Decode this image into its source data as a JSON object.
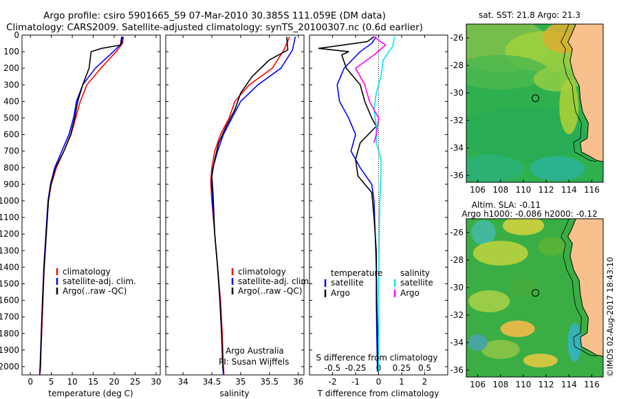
{
  "header": {
    "line1": "Argo profile: csiro 5901665_59 07-Mar-2010 30.385S 111.059E (DM data)",
    "line2": "Climatology: CARS2009. Satellite-adjusted climatology: synTS_20100307.nc (0.6d earlier)"
  },
  "colors": {
    "climatology": "#ff0000",
    "satellite": "#0000ff",
    "argo": "#000000",
    "sat_salinity": "#00e5ee",
    "argo_salinity": "#ff00ff",
    "land": "#f7c08d",
    "ocean_warm": "#8fcf47",
    "ocean_cool": "#2fa84f"
  },
  "chart_data": [
    {
      "type": "line",
      "name": "temperature-panel",
      "xlabel": "temperature (deg C)",
      "ylabel": "",
      "xlim": [
        -2,
        31
      ],
      "ylim": [
        2050,
        0
      ],
      "xticks": [
        "0",
        "5",
        "10",
        "15",
        "20",
        "25",
        "30"
      ],
      "yticks": [
        "0",
        "100",
        "200",
        "300",
        "400",
        "500",
        "600",
        "700",
        "800",
        "900",
        "1000",
        "1100",
        "1200",
        "1300",
        "1400",
        "1500",
        "1600",
        "1700",
        "1800",
        "1900",
        "2000"
      ],
      "legend": [
        "climatology",
        "satellite-adj. clim.",
        "Argo(..raw -QC)"
      ],
      "series": [
        {
          "name": "climatology",
          "color": "#ff0000",
          "points": [
            [
              22.2,
              10
            ],
            [
              22.0,
              50
            ],
            [
              20.5,
              100
            ],
            [
              16.8,
              200
            ],
            [
              13.5,
              300
            ],
            [
              11.9,
              400
            ],
            [
              10.8,
              500
            ],
            [
              9.7,
              600
            ],
            [
              8.0,
              700
            ],
            [
              6.2,
              800
            ],
            [
              5.0,
              900
            ],
            [
              4.3,
              1000
            ],
            [
              3.8,
              1200
            ],
            [
              3.3,
              1400
            ],
            [
              3.0,
              1600
            ],
            [
              2.7,
              1800
            ],
            [
              2.4,
              2000
            ],
            [
              2.3,
              2050
            ]
          ]
        },
        {
          "name": "satellite-adj. clim.",
          "color": "#0000ff",
          "points": [
            [
              22.0,
              10
            ],
            [
              21.8,
              50
            ],
            [
              19.8,
              100
            ],
            [
              15.5,
              200
            ],
            [
              12.5,
              300
            ],
            [
              11.0,
              400
            ],
            [
              10.3,
              500
            ],
            [
              9.2,
              600
            ],
            [
              7.5,
              700
            ],
            [
              5.8,
              800
            ],
            [
              4.8,
              900
            ],
            [
              4.2,
              1000
            ],
            [
              3.7,
              1200
            ],
            [
              3.2,
              1400
            ],
            [
              2.9,
              1600
            ],
            [
              2.6,
              1800
            ],
            [
              2.3,
              2000
            ],
            [
              2.2,
              2050
            ]
          ]
        },
        {
          "name": "Argo(..raw -QC)",
          "color": "#000000",
          "points": [
            [
              21.8,
              10
            ],
            [
              21.5,
              60
            ],
            [
              17.0,
              80
            ],
            [
              14.5,
              100
            ],
            [
              14.0,
              200
            ],
            [
              12.5,
              300
            ],
            [
              11.3,
              400
            ],
            [
              10.6,
              500
            ],
            [
              9.6,
              600
            ],
            [
              8.0,
              700
            ],
            [
              6.0,
              800
            ],
            [
              4.9,
              900
            ],
            [
              4.3,
              1000
            ],
            [
              3.8,
              1200
            ],
            [
              3.3,
              1400
            ],
            [
              2.9,
              1600
            ],
            [
              2.6,
              1800
            ],
            [
              2.4,
              2000
            ],
            [
              2.3,
              2030
            ]
          ]
        }
      ]
    },
    {
      "type": "line",
      "name": "salinity-panel",
      "xlabel": "salinity",
      "ylabel": "",
      "xlim": [
        33.7,
        36.1
      ],
      "ylim": [
        2050,
        0
      ],
      "xticks": [
        "34",
        "34.5",
        "35",
        "35.5",
        "36"
      ],
      "legend": [
        "climatology",
        "satellite-adj. clim.",
        "Argo(..raw -QC)"
      ],
      "annotations": [
        "Argo Australia",
        "PI: Susan Wijffels"
      ],
      "series": [
        {
          "name": "climatology",
          "color": "#ff0000",
          "points": [
            [
              35.85,
              10
            ],
            [
              35.75,
              90
            ],
            [
              35.55,
              200
            ],
            [
              35.15,
              300
            ],
            [
              34.9,
              400
            ],
            [
              34.8,
              500
            ],
            [
              34.65,
              600
            ],
            [
              34.55,
              700
            ],
            [
              34.5,
              800
            ],
            [
              34.48,
              880
            ],
            [
              34.5,
              1000
            ],
            [
              34.55,
              1200
            ],
            [
              34.6,
              1400
            ],
            [
              34.65,
              1600
            ],
            [
              34.68,
              1800
            ],
            [
              34.7,
              2000
            ],
            [
              34.71,
              2050
            ]
          ]
        },
        {
          "name": "satellite-adj. clim.",
          "color": "#0000ff",
          "points": [
            [
              35.95,
              10
            ],
            [
              35.9,
              90
            ],
            [
              35.7,
              200
            ],
            [
              35.3,
              300
            ],
            [
              35.0,
              400
            ],
            [
              34.85,
              500
            ],
            [
              34.7,
              600
            ],
            [
              34.6,
              700
            ],
            [
              34.52,
              800
            ],
            [
              34.49,
              880
            ],
            [
              34.51,
              1000
            ],
            [
              34.55,
              1200
            ],
            [
              34.6,
              1400
            ],
            [
              34.64,
              1600
            ],
            [
              34.67,
              1800
            ],
            [
              34.69,
              2000
            ],
            [
              34.7,
              2050
            ]
          ]
        },
        {
          "name": "Argo(..raw -QC)",
          "color": "#000000",
          "points": [
            [
              35.8,
              10
            ],
            [
              35.82,
              90
            ],
            [
              35.5,
              150
            ],
            [
              35.2,
              250
            ],
            [
              35.0,
              350
            ],
            [
              34.9,
              450
            ],
            [
              34.75,
              550
            ],
            [
              34.62,
              650
            ],
            [
              34.55,
              750
            ],
            [
              34.5,
              850
            ],
            [
              34.52,
              950
            ],
            [
              34.55,
              1200
            ],
            [
              34.6,
              1400
            ],
            [
              34.64,
              1600
            ],
            [
              34.67,
              1800
            ],
            [
              34.69,
              2000
            ],
            [
              34.7,
              2030
            ]
          ]
        }
      ]
    },
    {
      "type": "line",
      "name": "difference-panel",
      "xlabel": "T difference from climatology",
      "xlabel_top": "S difference from climatology",
      "xlim": [
        -3,
        3
      ],
      "ylim": [
        2050,
        0
      ],
      "xticks": [
        "-2",
        "-1",
        "0",
        "1",
        "2"
      ],
      "top_ticks": [
        "-0.5",
        "-0.25",
        "0",
        "0.25",
        "0.5"
      ],
      "legend_headers": [
        "temperature",
        "salinity"
      ],
      "legend": [
        "satellite",
        "Argo",
        "satellite",
        "Argo"
      ],
      "series": [
        {
          "name": "satellite",
          "group": "temperature",
          "color": "#0000ff",
          "points": [
            [
              -0.1,
              10
            ],
            [
              -0.3,
              50
            ],
            [
              -0.8,
              100
            ],
            [
              -1.5,
              200
            ],
            [
              -1.8,
              300
            ],
            [
              -1.7,
              400
            ],
            [
              -1.3,
              500
            ],
            [
              -1.0,
              600
            ],
            [
              -1.2,
              700
            ],
            [
              -0.8,
              800
            ],
            [
              -0.3,
              900
            ],
            [
              -0.2,
              1000
            ],
            [
              -0.15,
              1200
            ],
            [
              -0.1,
              1400
            ],
            [
              -0.1,
              1600
            ],
            [
              -0.08,
              1800
            ],
            [
              -0.05,
              2030
            ]
          ]
        },
        {
          "name": "Argo",
          "group": "temperature",
          "color": "#000000",
          "points": [
            [
              -0.2,
              10
            ],
            [
              -0.5,
              40
            ],
            [
              -2.6,
              80
            ],
            [
              -1.3,
              100
            ],
            [
              -1.6,
              120
            ],
            [
              -1.4,
              200
            ],
            [
              -0.8,
              300
            ],
            [
              -0.6,
              400
            ],
            [
              -0.3,
              500
            ],
            [
              -0.1,
              550
            ],
            [
              -0.8,
              650
            ],
            [
              -1.0,
              750
            ],
            [
              -0.9,
              850
            ],
            [
              -0.3,
              950
            ],
            [
              -0.2,
              1100
            ],
            [
              -0.1,
              1300
            ],
            [
              -0.08,
              1600
            ],
            [
              -0.05,
              1800
            ],
            [
              -0.04,
              2030
            ]
          ]
        },
        {
          "name": "satellite",
          "group": "salinity",
          "color": "#00e5ee",
          "points": [
            [
              0.7,
              10
            ],
            [
              0.6,
              70
            ],
            [
              0.2,
              150
            ],
            [
              0.1,
              250
            ],
            [
              -0.1,
              350
            ],
            [
              -0.2,
              450
            ],
            [
              -0.1,
              550
            ],
            [
              -0.1,
              650
            ],
            [
              0.1,
              750
            ],
            [
              0.1,
              850
            ],
            [
              0.05,
              1000
            ],
            [
              0.03,
              1200
            ],
            [
              0.0,
              1500
            ],
            [
              0.0,
              1800
            ],
            [
              0.0,
              2030
            ]
          ]
        },
        {
          "name": "Argo",
          "group": "salinity",
          "color": "#ff00ff",
          "points": [
            [
              -0.2,
              10
            ],
            [
              0.3,
              60
            ],
            [
              -0.2,
              120
            ],
            [
              -1.0,
              200
            ],
            [
              -0.6,
              300
            ],
            [
              -0.4,
              400
            ],
            [
              0.0,
              500
            ],
            [
              -0.1,
              600
            ],
            [
              -0.2,
              650
            ]
          ]
        }
      ]
    },
    {
      "type": "heatmap",
      "name": "sst-map",
      "title": "sat. SST: 21.8  Argo: 21.3",
      "xlim": [
        105,
        117
      ],
      "ylim": [
        -36.5,
        -25
      ],
      "xticks": [
        "106",
        "108",
        "110",
        "112",
        "114",
        "116"
      ],
      "yticks": [
        "-26",
        "-28",
        "-30",
        "-32",
        "-34",
        "-36"
      ],
      "marker": [
        111.059,
        -30.385
      ]
    },
    {
      "type": "heatmap",
      "name": "sla-map",
      "title": "Altim. SLA: -0.11",
      "subtitle": "Argo h1000: -0.086  h2000: -0.12",
      "xlim": [
        105,
        117
      ],
      "ylim": [
        -36.5,
        -25
      ],
      "xticks": [
        "106",
        "108",
        "110",
        "112",
        "114",
        "116"
      ],
      "yticks": [
        "-26",
        "-28",
        "-30",
        "-32",
        "-34",
        "-36"
      ],
      "marker": [
        111.059,
        -30.385
      ]
    }
  ],
  "footer": {
    "stamp": "©IMOS 02-Aug-2017 18:43:10"
  }
}
